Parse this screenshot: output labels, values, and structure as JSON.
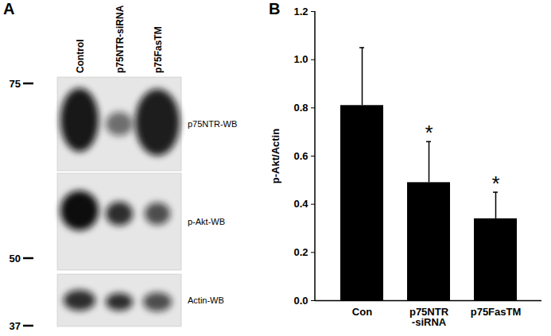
{
  "panel_a": {
    "label": "A",
    "lanes": [
      "Control",
      "p75NTR-siRNA",
      "p75FasTM"
    ],
    "blots": [
      {
        "label": "p75NTR-WB",
        "marker": 75
      },
      {
        "label": "p-Akt-WB",
        "marker": 50
      },
      {
        "label": "Actin-WB",
        "marker": 37
      }
    ]
  },
  "chart_data": {
    "type": "bar",
    "panel_label": "B",
    "y_label": "p-Akt/Actin",
    "categories": [
      "Con",
      "p75NTR\n-siRNA",
      "p75FasTM"
    ],
    "values": [
      0.81,
      0.49,
      0.34
    ],
    "errors": [
      0.24,
      0.17,
      0.11
    ],
    "significance": [
      null,
      "*",
      "*"
    ],
    "color": "#000000",
    "ylim": [
      0,
      1.2
    ],
    "yticks": [
      {
        "value": 0,
        "label": "0.0"
      },
      0.2,
      0.4,
      0.6,
      0.8,
      {
        "value": 1,
        "label": "1.0"
      },
      1.2
    ],
    "grid": false
  }
}
